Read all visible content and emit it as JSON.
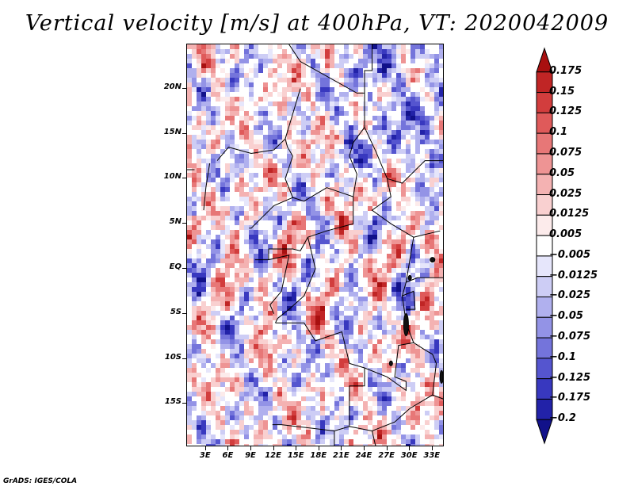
{
  "title": "Vertical velocity [m/s] at 400hPa, VT: 2020042009",
  "footer": "GrADS: IGES/COLA",
  "map": {
    "lat_labels": [
      "20N",
      "15N",
      "10N",
      "5N",
      "EQ",
      "5S",
      "10S",
      "15S"
    ],
    "lat_values": [
      20,
      15,
      10,
      5,
      0,
      -5,
      -10,
      -15
    ],
    "lon_labels": [
      "3E",
      "6E",
      "9E",
      "12E",
      "15E",
      "18E",
      "21E",
      "24E",
      "27E",
      "30E",
      "33E"
    ],
    "lon_values": [
      3,
      6,
      9,
      12,
      15,
      18,
      21,
      24,
      27,
      30,
      33
    ],
    "lon_range": [
      0.5,
      34.6
    ],
    "lat_range": [
      -19.8,
      24.9
    ]
  },
  "colorbar": {
    "labels": [
      "0.175",
      "0.15",
      "0.125",
      "0.1",
      "0.075",
      "0.05",
      "0.025",
      "0.0125",
      "0.005",
      "−0.005",
      "−0.0125",
      "−0.025",
      "−0.05",
      "−0.075",
      "−0.1",
      "−0.125",
      "−0.175",
      "−0.2"
    ],
    "colors": [
      "#a81010",
      "#c02525",
      "#d23d3d",
      "#df5a5a",
      "#e77777",
      "#ee9494",
      "#f4b2b2",
      "#f9d0d0",
      "#fcebeb",
      "#ffffff",
      "#e6e6fb",
      "#cdcdf5",
      "#b0b0ee",
      "#9393e6",
      "#7474db",
      "#5555cf",
      "#3838bf",
      "#2222a8",
      "#11118a"
    ]
  },
  "chart_data": {
    "type": "heatmap",
    "title": "Vertical velocity [m/s] at 400hPa, VT: 2020042009",
    "variable": "Vertical velocity",
    "units": "m/s",
    "level": "400hPa",
    "valid_time": "2020042009",
    "x_ticks": [
      "3E",
      "6E",
      "9E",
      "12E",
      "15E",
      "18E",
      "21E",
      "24E",
      "27E",
      "30E",
      "33E"
    ],
    "y_ticks": [
      "20N",
      "15N",
      "10N",
      "5N",
      "EQ",
      "5S",
      "10S",
      "15S"
    ],
    "contour_levels": [
      -0.2,
      -0.175,
      -0.125,
      -0.1,
      -0.075,
      -0.05,
      -0.025,
      -0.0125,
      -0.005,
      0.005,
      0.0125,
      0.025,
      0.05,
      0.075,
      0.1,
      0.125,
      0.15,
      0.175
    ]
  }
}
